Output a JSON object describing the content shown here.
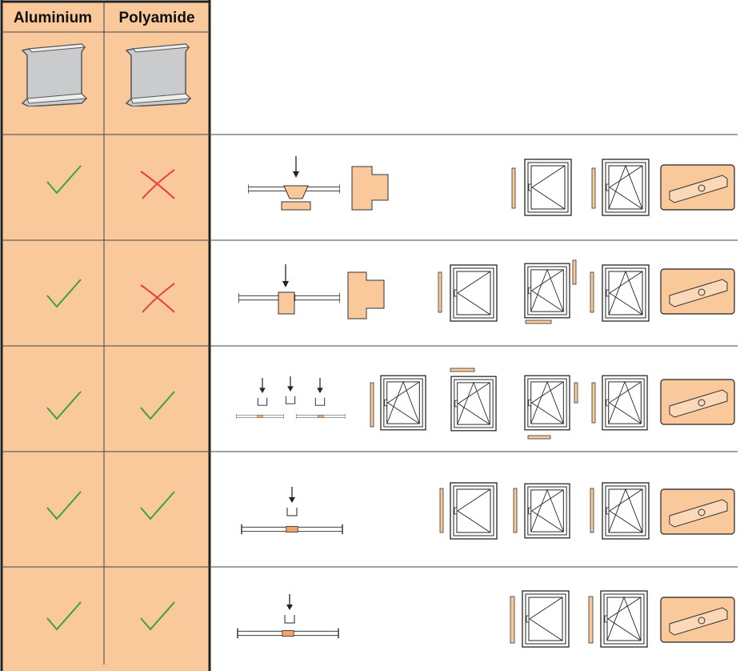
{
  "table": {
    "headers": [
      "Aluminium",
      "Polyamide"
    ]
  }
}
